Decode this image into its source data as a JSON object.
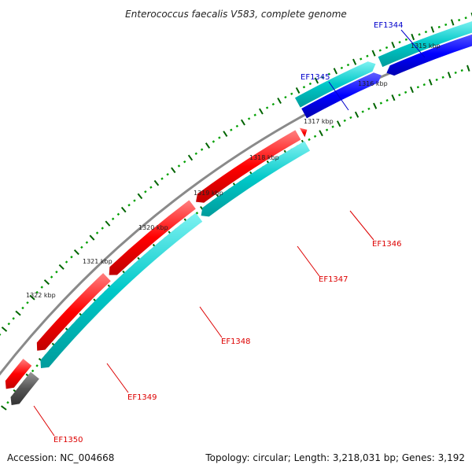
{
  "title": "Enterococcus faecalis V583, complete genome",
  "footer": {
    "accession": "Accession: NC_004668",
    "topology": "Topology: circular; Length: 3,218,031 bp; Genes: 3,192"
  },
  "colors": {
    "forward_cds": "#00c8c8",
    "reverse_cds": "#ff0000",
    "blue_cds": "#0000ff",
    "other_feature": "#555555",
    "backbone": "#888888",
    "tick_major": "#006400",
    "tick_minor": "#00a000",
    "label_blue": "#0000cc",
    "label_red": "#dd0000"
  },
  "ticks": [
    {
      "label": "1315 kbp"
    },
    {
      "label": "1316 kbp"
    },
    {
      "label": "1317 kbp"
    },
    {
      "label": "1318 kbp"
    },
    {
      "label": "1319 kbp"
    },
    {
      "label": "1320 kbp"
    },
    {
      "label": "1321 kbp"
    },
    {
      "label": "1322 kbp"
    }
  ],
  "genes": [
    {
      "name": "EF1344",
      "strand": "forward",
      "color_key": "forward_cds",
      "label_color": "label_blue"
    },
    {
      "name": "EF1345",
      "strand": "forward",
      "color_key": "forward_cds",
      "label_color": "label_blue"
    },
    {
      "name": "EF1346",
      "strand": "reverse",
      "color_key": "reverse_cds",
      "label_color": "label_red"
    },
    {
      "name": "EF1347",
      "strand": "reverse",
      "color_key": "forward_cds",
      "label_color": "label_red"
    },
    {
      "name": "EF1348",
      "strand": "reverse",
      "color_key": "reverse_cds",
      "label_color": "label_red"
    },
    {
      "name": "EF1349",
      "strand": "reverse",
      "color_key": "forward_cds",
      "label_color": "label_red"
    },
    {
      "name": "EF1350",
      "strand": "reverse",
      "color_key": "other_feature",
      "label_color": "label_red"
    }
  ]
}
